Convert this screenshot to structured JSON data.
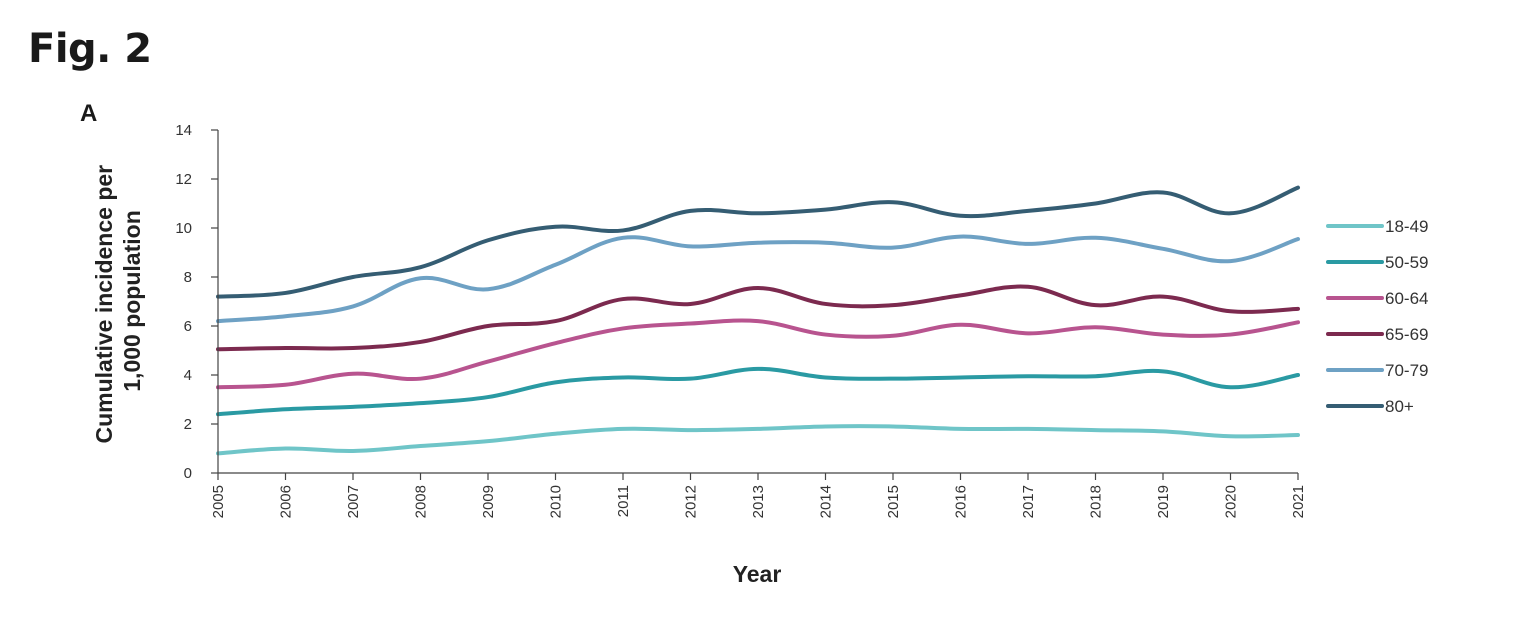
{
  "figure": {
    "label": "Fig. 2",
    "panel": "A"
  },
  "chart_data": {
    "type": "line",
    "title": "",
    "xlabel": "Year",
    "ylabel_lines": [
      "Cumulative incidence per",
      "1,000 population"
    ],
    "x": [
      2005,
      2006,
      2007,
      2008,
      2009,
      2010,
      2011,
      2012,
      2013,
      2014,
      2015,
      2016,
      2017,
      2018,
      2019,
      2020,
      2021
    ],
    "ylim": [
      0,
      14
    ],
    "yticks": [
      0,
      2,
      4,
      6,
      8,
      10,
      12,
      14
    ],
    "grid": false,
    "legend_position": "right",
    "series": [
      {
        "name": "18-49",
        "color": "#6fc5c8",
        "values": [
          0.8,
          1.0,
          0.9,
          1.1,
          1.3,
          1.6,
          1.8,
          1.75,
          1.8,
          1.9,
          1.9,
          1.8,
          1.8,
          1.75,
          1.7,
          1.5,
          1.55
        ]
      },
      {
        "name": "50-59",
        "color": "#2a9aa3",
        "values": [
          2.4,
          2.6,
          2.7,
          2.85,
          3.1,
          3.7,
          3.9,
          3.85,
          4.25,
          3.9,
          3.85,
          3.9,
          3.95,
          3.95,
          4.15,
          3.5,
          4.0
        ]
      },
      {
        "name": "60-64",
        "color": "#b8548f",
        "values": [
          3.5,
          3.6,
          4.05,
          3.85,
          4.55,
          5.3,
          5.9,
          6.1,
          6.2,
          5.65,
          5.6,
          6.05,
          5.7,
          5.95,
          5.65,
          5.65,
          6.15
        ]
      },
      {
        "name": "65-69",
        "color": "#7c2a4f",
        "values": [
          5.05,
          5.1,
          5.1,
          5.35,
          6.0,
          6.2,
          7.1,
          6.9,
          7.55,
          6.9,
          6.85,
          7.25,
          7.6,
          6.85,
          7.2,
          6.6,
          6.7
        ]
      },
      {
        "name": "70-79",
        "color": "#6ea1c4",
        "values": [
          6.2,
          6.4,
          6.8,
          7.95,
          7.5,
          8.5,
          9.6,
          9.25,
          9.4,
          9.4,
          9.2,
          9.65,
          9.35,
          9.6,
          9.15,
          8.65,
          9.55
        ]
      },
      {
        "name": "80+",
        "color": "#355d73",
        "values": [
          7.2,
          7.35,
          8.0,
          8.4,
          9.5,
          10.05,
          9.9,
          10.7,
          10.6,
          10.75,
          11.05,
          10.5,
          10.7,
          11.0,
          11.45,
          10.6,
          11.65
        ]
      }
    ]
  }
}
